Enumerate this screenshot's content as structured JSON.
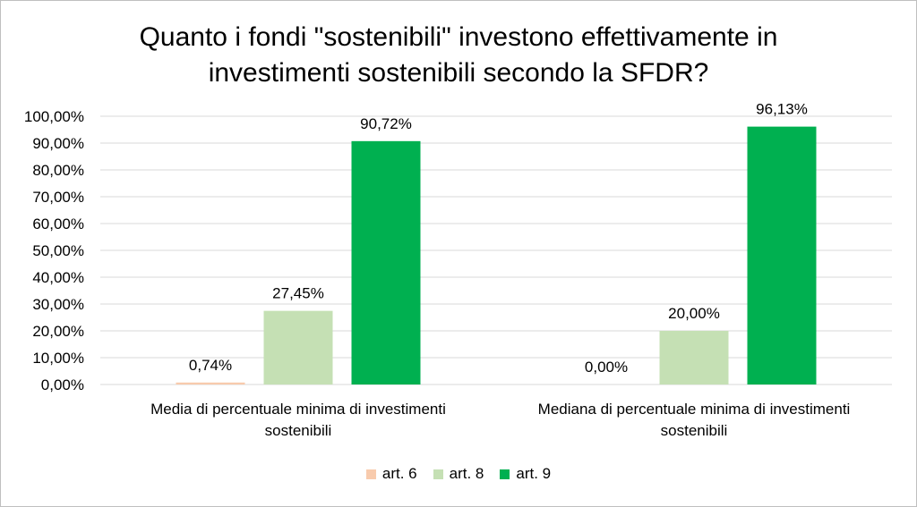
{
  "chart_data": {
    "type": "bar",
    "title_lines": [
      "Quanto i fondi \"sostenibili\" investono effettivamente in",
      "investimenti sostenibili secondo la SFDR?"
    ],
    "categories": [
      [
        "Media di percentuale minima di investimenti",
        "sostenibili"
      ],
      [
        "Mediana di percentuale minima di investimenti",
        "sostenibili"
      ]
    ],
    "series": [
      {
        "name": "art. 6",
        "color": "#f8cbad",
        "values": [
          0.74,
          0.0
        ],
        "labels": [
          "0,74%",
          "0,00%"
        ]
      },
      {
        "name": "art. 8",
        "color": "#c5e0b4",
        "values": [
          27.45,
          20.0
        ],
        "labels": [
          "27,45%",
          "20,00%"
        ]
      },
      {
        "name": "art. 9",
        "color": "#00b050",
        "values": [
          90.72,
          96.13
        ],
        "labels": [
          "90,72%",
          "96,13%"
        ]
      }
    ],
    "ylim": [
      0,
      100
    ],
    "yticks": [
      0,
      10,
      20,
      30,
      40,
      50,
      60,
      70,
      80,
      90,
      100
    ],
    "ytick_labels": [
      "0,00%",
      "10,00%",
      "20,00%",
      "30,00%",
      "40,00%",
      "50,00%",
      "60,00%",
      "70,00%",
      "80,00%",
      "90,00%",
      "100,00%"
    ],
    "grid": true,
    "legend_position": "bottom"
  }
}
